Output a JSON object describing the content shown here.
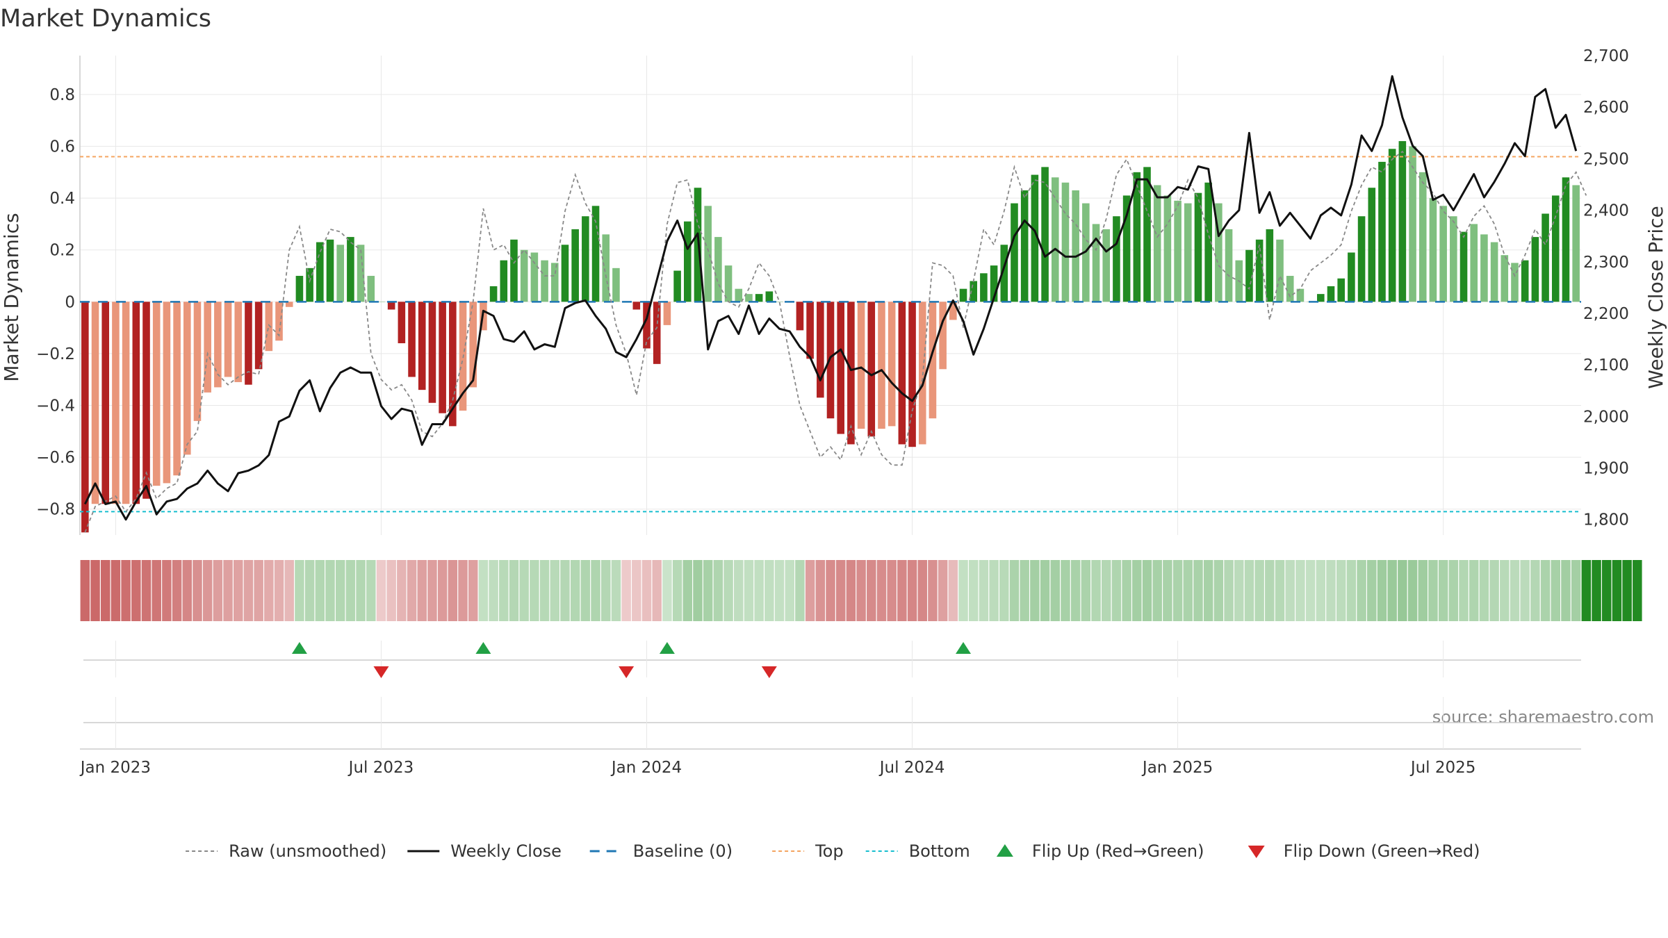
{
  "chart_data": {
    "type": "bar",
    "title": "Market Dynamics",
    "ylabel_left": "Market Dynamics",
    "ylabel_right": "Weekly Close Price",
    "source": "source: sharemaestro.com",
    "ylim_left": [
      -0.9,
      0.95
    ],
    "ylim_right": [
      1770,
      2700
    ],
    "left_ticks": [
      0.8,
      0.6,
      0.4,
      0.2,
      0,
      -0.2,
      -0.4,
      -0.6,
      -0.8
    ],
    "left_tick_labels": [
      "0.8",
      "0.6",
      "0.4",
      "0.2",
      "0",
      "−0.2",
      "−0.4",
      "−0.6",
      "−0.8"
    ],
    "right_ticks": [
      2700,
      2600,
      2500,
      2400,
      2300,
      2200,
      2100,
      2000,
      1900,
      1800
    ],
    "right_tick_labels": [
      "2,700",
      "2,600",
      "2,500",
      "2,400",
      "2,300",
      "2,200",
      "2,100",
      "2,000",
      "1,900",
      "1,800"
    ],
    "x_tick_index": [
      3,
      29,
      55,
      81,
      107,
      133
    ],
    "x_tick_labels": [
      "Jan 2023",
      "Jul 2023",
      "Jan 2024",
      "Jul 2024",
      "Jan 2025",
      "Jul 2025"
    ],
    "top_line": 0.56,
    "bottom_line": -0.81,
    "baseline": 0,
    "bars": [
      -0.89,
      -0.78,
      -0.78,
      -0.78,
      -0.78,
      -0.78,
      -0.76,
      -0.71,
      -0.7,
      -0.67,
      -0.59,
      -0.46,
      -0.35,
      -0.33,
      -0.29,
      -0.31,
      -0.32,
      -0.26,
      -0.19,
      -0.15,
      -0.02,
      0.1,
      0.13,
      0.23,
      0.24,
      0.22,
      0.25,
      0.22,
      0.1,
      0,
      -0.03,
      -0.16,
      -0.29,
      -0.34,
      -0.39,
      -0.43,
      -0.48,
      -0.42,
      -0.33,
      -0.11,
      0.06,
      0.16,
      0.24,
      0.2,
      0.19,
      0.16,
      0.15,
      0.22,
      0.28,
      0.33,
      0.37,
      0.26,
      0.13,
      0,
      -0.03,
      -0.18,
      -0.24,
      -0.09,
      0.12,
      0.31,
      0.44,
      0.37,
      0.25,
      0.14,
      0.05,
      0.03,
      0.03,
      0.04,
      0,
      0,
      -0.11,
      -0.22,
      -0.37,
      -0.45,
      -0.51,
      -0.55,
      -0.49,
      -0.52,
      -0.49,
      -0.48,
      -0.55,
      -0.56,
      -0.55,
      -0.45,
      -0.26,
      -0.07,
      0.05,
      0.08,
      0.11,
      0.14,
      0.22,
      0.38,
      0.43,
      0.49,
      0.52,
      0.48,
      0.46,
      0.43,
      0.38,
      0.3,
      0.28,
      0.33,
      0.41,
      0.5,
      0.52,
      0.45,
      0.41,
      0.39,
      0.38,
      0.42,
      0.46,
      0.38,
      0.28,
      0.16,
      0.2,
      0.24,
      0.28,
      0.24,
      0.1,
      0.05,
      0,
      0.03,
      0.06,
      0.09,
      0.19,
      0.33,
      0.44,
      0.54,
      0.59,
      0.62,
      0.6,
      0.5,
      0.4,
      0.37,
      0.33,
      0.27,
      0.3,
      0.26,
      0.23,
      0.18,
      0.15,
      0.16,
      0.25,
      0.34,
      0.41,
      0.48,
      0.45
    ],
    "bar_strength": [
      2,
      1,
      2,
      1,
      1,
      2,
      2,
      1,
      1,
      1,
      1,
      1,
      1,
      1,
      1,
      1,
      2,
      2,
      1,
      1,
      1,
      2,
      2,
      2,
      2,
      1,
      2,
      1,
      1,
      1,
      2,
      2,
      2,
      2,
      2,
      2,
      2,
      1,
      1,
      1,
      2,
      2,
      2,
      1,
      1,
      1,
      1,
      2,
      2,
      2,
      2,
      1,
      1,
      1,
      2,
      2,
      2,
      1,
      2,
      2,
      2,
      1,
      1,
      1,
      1,
      1,
      2,
      2,
      1,
      1,
      2,
      2,
      2,
      2,
      2,
      2,
      1,
      2,
      1,
      1,
      2,
      2,
      1,
      1,
      1,
      1,
      2,
      2,
      2,
      2,
      2,
      2,
      2,
      2,
      2,
      1,
      1,
      1,
      1,
      1,
      1,
      2,
      2,
      2,
      2,
      1,
      1,
      1,
      1,
      2,
      2,
      1,
      1,
      1,
      2,
      2,
      2,
      1,
      1,
      1,
      1,
      2,
      2,
      2,
      2,
      2,
      2,
      2,
      2,
      2,
      1,
      1,
      1,
      1,
      1,
      2,
      1,
      1,
      1,
      1,
      1,
      2,
      2,
      2,
      2,
      2,
      1
    ],
    "raw": [
      -0.89,
      -0.79,
      -0.77,
      -0.75,
      -0.81,
      -0.76,
      -0.66,
      -0.76,
      -0.72,
      -0.7,
      -0.55,
      -0.5,
      -0.2,
      -0.28,
      -0.32,
      -0.29,
      -0.27,
      -0.28,
      -0.09,
      -0.13,
      0.2,
      0.29,
      0.08,
      0.19,
      0.28,
      0.27,
      0.23,
      0.2,
      -0.2,
      -0.3,
      -0.34,
      -0.32,
      -0.38,
      -0.5,
      -0.52,
      -0.47,
      -0.38,
      -0.22,
      0.0,
      0.36,
      0.2,
      0.22,
      0.15,
      0.2,
      0.15,
      0.1,
      0.1,
      0.35,
      0.49,
      0.38,
      0.31,
      0.1,
      -0.09,
      -0.2,
      -0.36,
      -0.15,
      -0.1,
      0.3,
      0.46,
      0.47,
      0.3,
      0.2,
      0.07,
      0.0,
      -0.02,
      0.05,
      0.15,
      0.1,
      0.0,
      -0.21,
      -0.4,
      -0.5,
      -0.6,
      -0.56,
      -0.61,
      -0.48,
      -0.59,
      -0.5,
      -0.59,
      -0.63,
      -0.63,
      -0.42,
      -0.3,
      0.15,
      0.14,
      0.1,
      -0.1,
      0.08,
      0.28,
      0.22,
      0.35,
      0.52,
      0.4,
      0.47,
      0.46,
      0.4,
      0.34,
      0.3,
      0.24,
      0.2,
      0.32,
      0.49,
      0.55,
      0.45,
      0.35,
      0.25,
      0.3,
      0.37,
      0.47,
      0.4,
      0.26,
      0.14,
      0.1,
      0.08,
      0.05,
      0.22,
      -0.07,
      0.1,
      0.02,
      0.05,
      0.12,
      0.15,
      0.18,
      0.22,
      0.35,
      0.45,
      0.52,
      0.5,
      0.55,
      0.58,
      0.52,
      0.46,
      0.42,
      0.35,
      0.31,
      0.25,
      0.33,
      0.37,
      0.3,
      0.18,
      0.1,
      0.18,
      0.28,
      0.22,
      0.33,
      0.45,
      0.5,
      0.41
    ],
    "close": [
      1830,
      1870,
      1830,
      1835,
      1800,
      1835,
      1865,
      1810,
      1835,
      1840,
      1860,
      1870,
      1895,
      1870,
      1855,
      1890,
      1895,
      1905,
      1925,
      1990,
      2000,
      2050,
      2070,
      2010,
      2055,
      2085,
      2095,
      2085,
      2085,
      2020,
      1995,
      2015,
      2010,
      1945,
      1985,
      1985,
      2015,
      2045,
      2070,
      2205,
      2195,
      2150,
      2145,
      2165,
      2130,
      2140,
      2135,
      2210,
      2220,
      2225,
      2195,
      2170,
      2125,
      2115,
      2150,
      2190,
      2265,
      2340,
      2380,
      2325,
      2355,
      2130,
      2185,
      2195,
      2160,
      2215,
      2160,
      2190,
      2170,
      2165,
      2135,
      2115,
      2070,
      2115,
      2130,
      2090,
      2095,
      2080,
      2090,
      2065,
      2045,
      2030,
      2060,
      2125,
      2185,
      2225,
      2185,
      2120,
      2170,
      2230,
      2290,
      2350,
      2380,
      2360,
      2310,
      2325,
      2310,
      2310,
      2320,
      2345,
      2320,
      2335,
      2390,
      2460,
      2460,
      2425,
      2425,
      2445,
      2440,
      2485,
      2480,
      2350,
      2380,
      2400,
      2550,
      2395,
      2435,
      2370,
      2395,
      2370,
      2345,
      2390,
      2405,
      2390,
      2450,
      2545,
      2515,
      2565,
      2660,
      2580,
      2525,
      2505,
      2420,
      2430,
      2400,
      2435,
      2470,
      2425,
      2455,
      2490,
      2530,
      2505,
      2620,
      2635,
      2560,
      2585,
      2515
    ],
    "regime": [
      1,
      1,
      1,
      1,
      1,
      1,
      1,
      1,
      1,
      1,
      1,
      1,
      1,
      1,
      1,
      1,
      1,
      1,
      1,
      1,
      1,
      -1,
      -1,
      -1,
      -1,
      -1,
      -1,
      -1,
      -1,
      1,
      1,
      1,
      1,
      1,
      1,
      1,
      1,
      1,
      1,
      -1,
      -1,
      -1,
      -1,
      -1,
      -1,
      -1,
      -1,
      -1,
      -1,
      -1,
      -1,
      -1,
      -1,
      1,
      1,
      1,
      1,
      -1,
      -1,
      -1,
      -1,
      -1,
      -1,
      -1,
      -1,
      -1,
      -1,
      -1,
      -1,
      -1,
      -1,
      1,
      1,
      1,
      1,
      1,
      1,
      1,
      1,
      1,
      1,
      1,
      1,
      1,
      1,
      1,
      -1,
      -1,
      -1,
      -1,
      -1,
      -1,
      -1,
      -1,
      -1,
      -1,
      -1,
      -1,
      -1,
      -1,
      -1,
      -1,
      -1,
      -1,
      -1,
      -1,
      -1,
      -1,
      -1,
      -1,
      -1,
      -1,
      -1,
      -1,
      -1,
      -1,
      -1,
      -1,
      -1,
      -1,
      -1,
      -1,
      -1,
      -1,
      -1,
      -1,
      -1,
      -1,
      -1,
      -1,
      -1,
      -1,
      -1,
      -1,
      -1,
      -1,
      -1,
      -1,
      -1,
      -1,
      -1,
      -1,
      -1,
      -1,
      -1,
      -1,
      -1,
      -1,
      -1,
      -1,
      -1,
      -1,
      -1
    ],
    "heat_intensity": [
      0.9,
      0.9,
      0.9,
      0.88,
      0.86,
      0.85,
      0.82,
      0.8,
      0.78,
      0.74,
      0.7,
      0.62,
      0.56,
      0.52,
      0.5,
      0.48,
      0.47,
      0.46,
      0.42,
      0.38,
      0.32,
      0.42,
      0.44,
      0.46,
      0.46,
      0.46,
      0.46,
      0.45,
      0.42,
      0.2,
      0.26,
      0.36,
      0.44,
      0.5,
      0.52,
      0.55,
      0.58,
      0.55,
      0.5,
      0.3,
      0.35,
      0.4,
      0.44,
      0.42,
      0.42,
      0.41,
      0.4,
      0.43,
      0.45,
      0.47,
      0.48,
      0.44,
      0.38,
      0.2,
      0.22,
      0.28,
      0.32,
      0.25,
      0.42,
      0.56,
      0.6,
      0.55,
      0.48,
      0.4,
      0.34,
      0.32,
      0.32,
      0.33,
      0.3,
      0.3,
      0.44,
      0.52,
      0.6,
      0.64,
      0.66,
      0.68,
      0.65,
      0.66,
      0.65,
      0.64,
      0.68,
      0.7,
      0.68,
      0.62,
      0.5,
      0.3,
      0.3,
      0.32,
      0.34,
      0.36,
      0.4,
      0.5,
      0.53,
      0.56,
      0.58,
      0.56,
      0.55,
      0.53,
      0.5,
      0.46,
      0.44,
      0.47,
      0.52,
      0.56,
      0.58,
      0.54,
      0.52,
      0.51,
      0.5,
      0.52,
      0.55,
      0.5,
      0.44,
      0.38,
      0.4,
      0.42,
      0.44,
      0.42,
      0.34,
      0.32,
      0.3,
      0.32,
      0.34,
      0.36,
      0.42,
      0.5,
      0.56,
      0.62,
      0.66,
      0.68,
      0.66,
      0.6,
      0.54,
      0.52,
      0.5,
      0.46,
      0.48,
      0.45,
      0.43,
      0.4,
      0.38,
      0.39,
      0.44,
      0.5,
      0.54,
      0.58,
      0.56
    ],
    "flips_up": [
      21,
      39,
      57,
      86
    ],
    "flips_down": [
      29,
      53,
      67
    ],
    "legend": [
      {
        "key": "raw",
        "label": "Raw (unsmoothed)"
      },
      {
        "key": "close",
        "label": "Weekly Close"
      },
      {
        "key": "baseline",
        "label": "Baseline (0)"
      },
      {
        "key": "top",
        "label": "Top"
      },
      {
        "key": "bottom",
        "label": "Bottom"
      },
      {
        "key": "flip_up",
        "label": "Flip Up (Red→Green)"
      },
      {
        "key": "flip_down",
        "label": "Flip Down (Green→Red)"
      }
    ]
  },
  "colors": {
    "pos_strong": "#228B22",
    "pos_weak": "#7FBF7F",
    "neg_strong": "#B22222",
    "neg_weak": "#E9967A",
    "close_line": "#111111",
    "raw_line": "#888888",
    "baseline": "#1F77B4",
    "top": "#F4A460",
    "bottom": "#17BECF",
    "flip_up": "#22A045",
    "flip_down": "#D62728",
    "grid": "#E8E8E8",
    "axis": "#CCCCCC"
  }
}
